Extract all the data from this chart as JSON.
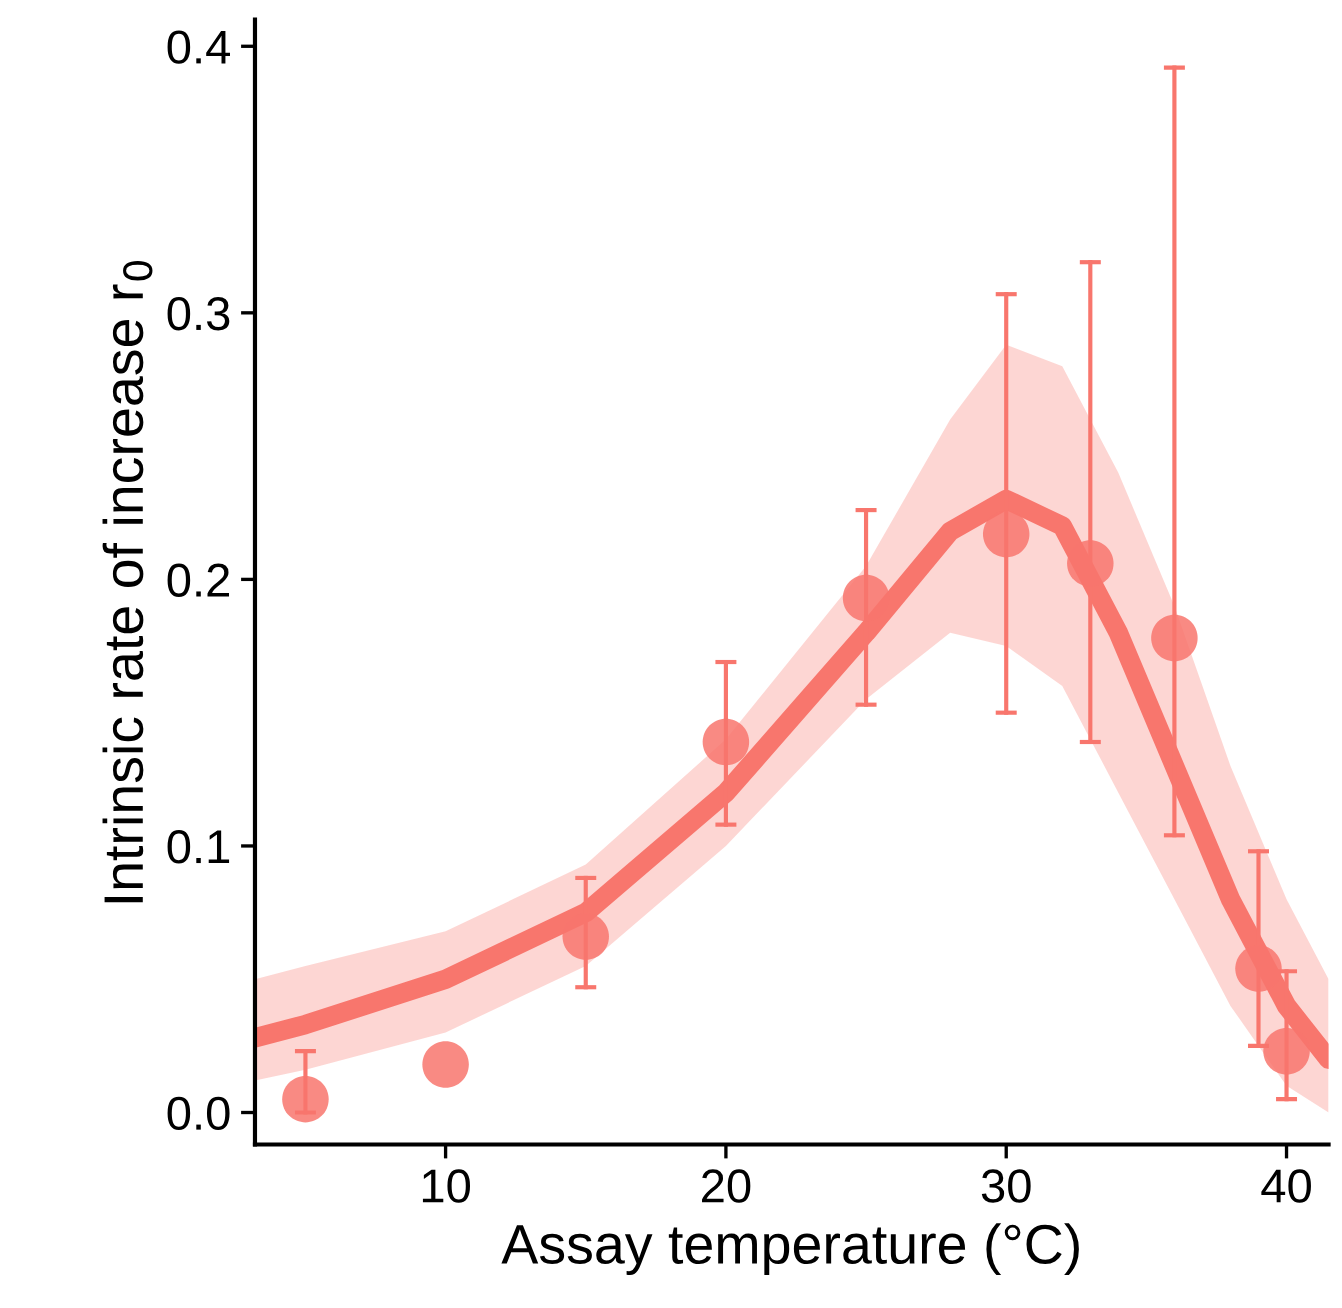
{
  "chart_data": {
    "type": "scatter",
    "xlabel": "Assay temperature (°C)",
    "ylabel": "Intrinsic rate of increase r$_{0}$",
    "xlim": [
      3.2,
      41.5
    ],
    "ylim": [
      -0.012,
      0.41
    ],
    "xticks": [
      10,
      20,
      30,
      40
    ],
    "yticks": [
      {
        "value": 0,
        "label": "0.0"
      },
      0.1,
      0.2,
      0.3,
      0.4
    ],
    "grid": false,
    "legend": false,
    "series": [
      {
        "type": "line",
        "color": "#f8766d",
        "x": [
          3.2,
          5,
          10,
          15,
          20,
          25,
          28,
          30,
          32,
          34,
          36,
          38,
          40,
          41.5
        ],
        "values": [
          0.028,
          0.033,
          0.05,
          0.075,
          0.12,
          0.18,
          0.218,
          0.23,
          0.22,
          0.18,
          0.13,
          0.08,
          0.04,
          0.02
        ],
        "lower": [
          0.012,
          0.016,
          0.03,
          0.055,
          0.1,
          0.155,
          0.18,
          0.175,
          0.16,
          0.12,
          0.08,
          0.04,
          0.01,
          0.0
        ],
        "upper": [
          0.05,
          0.055,
          0.068,
          0.093,
          0.14,
          0.205,
          0.26,
          0.288,
          0.28,
          0.24,
          0.19,
          0.13,
          0.08,
          0.05
        ]
      },
      {
        "color": "#f8766d",
        "marker": "circle",
        "x": [
          5,
          10,
          15,
          20,
          25,
          30,
          33,
          36,
          39,
          40
        ],
        "values": [
          0.005,
          0.018,
          0.066,
          0.139,
          0.193,
          0.217,
          0.206,
          0.178,
          0.054,
          0.023
        ],
        "errors": [
          [
            0.0,
            0.023
          ],
          null,
          [
            0.047,
            0.088
          ],
          [
            0.108,
            0.169
          ],
          [
            0.153,
            0.226
          ],
          [
            0.15,
            0.307
          ],
          [
            0.139,
            0.319
          ],
          [
            0.104,
            0.392
          ],
          [
            0.025,
            0.098
          ],
          [
            0.005,
            0.053
          ]
        ]
      }
    ]
  }
}
